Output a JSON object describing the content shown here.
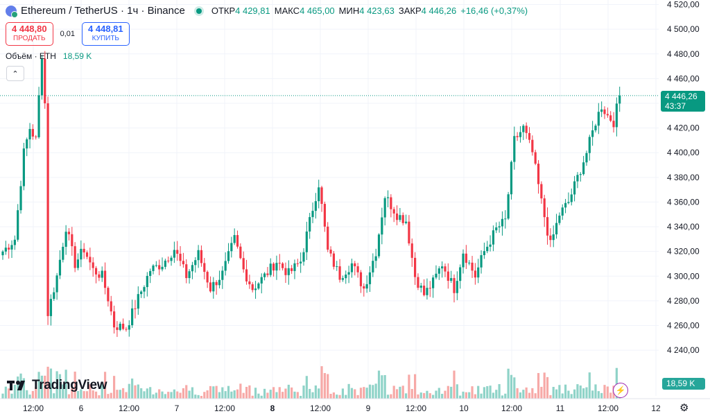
{
  "header": {
    "title": "Ethereum / TetherUS · 1ч · Binance",
    "open_label": "ОТКР",
    "open_value": "4 429,81",
    "high_label": "МАКС",
    "high_value": "4 465,00",
    "low_label": "МИН",
    "low_value": "4 423,63",
    "close_label": "ЗАКР",
    "close_value": "4 446,26",
    "change": "+16,46 (+0,37%)"
  },
  "trade": {
    "sell_price": "4 448,80",
    "sell_label": "ПРОДАТЬ",
    "spread": "0,01",
    "buy_price": "4 448,81",
    "buy_label": "КУПИТЬ"
  },
  "volume": {
    "label": "Объём · ETH",
    "value": "18,59 K",
    "tag": "18,59 K"
  },
  "price_tag": {
    "price": "4 446,26",
    "countdown": "43:37"
  },
  "logo": {
    "text": "TradingView"
  },
  "colors": {
    "up": "#089981",
    "down": "#f23645",
    "vol_up": "#8fd3c8",
    "vol_down": "#f7a9a7",
    "grid": "#f0f3fa"
  },
  "chart_data": {
    "type": "candlestick",
    "title": "Ethereum / TetherUS · 1ч · Binance",
    "interval": "1h",
    "y_ticks": [
      4240,
      4260,
      4280,
      4300,
      4320,
      4340,
      4360,
      4380,
      4400,
      4420,
      4440,
      4460,
      4480,
      4500,
      4520
    ],
    "y_tick_labels": [
      "4 240,00",
      "4 260,00",
      "4 280,00",
      "4 300,00",
      "4 320,00",
      "4 340,00",
      "4 360,00",
      "4 380,00",
      "4 400,00",
      "4 420,00",
      "4 440,00",
      "4 460,00",
      "4 480,00",
      "4 500,00",
      "4 520,00"
    ],
    "ylim": [
      4226,
      4522
    ],
    "x_labels": [
      "12:00",
      "6",
      "12:00",
      "7",
      "12:00",
      "8",
      "12:00",
      "9",
      "12:00",
      "10",
      "12:00",
      "11",
      "12:00",
      "12"
    ],
    "bold_x_labels": [
      "8"
    ],
    "last_price": 4446.26,
    "ohlc_anchors": [
      [
        0,
        4320
      ],
      [
        4,
        4330
      ],
      [
        7,
        4400
      ],
      [
        9,
        4420
      ],
      [
        11,
        4410
      ],
      [
        13,
        4480
      ],
      [
        14,
        4440
      ],
      [
        15,
        4270
      ],
      [
        18,
        4300
      ],
      [
        21,
        4340
      ],
      [
        24,
        4310
      ],
      [
        27,
        4322
      ],
      [
        30,
        4305
      ],
      [
        33,
        4300
      ],
      [
        35,
        4282
      ],
      [
        37,
        4260
      ],
      [
        41,
        4258
      ],
      [
        45,
        4282
      ],
      [
        49,
        4305
      ],
      [
        53,
        4310
      ],
      [
        57,
        4322
      ],
      [
        61,
        4300
      ],
      [
        65,
        4318
      ],
      [
        69,
        4290
      ],
      [
        73,
        4302
      ],
      [
        77,
        4330
      ],
      [
        80,
        4305
      ],
      [
        83,
        4290
      ],
      [
        87,
        4300
      ],
      [
        91,
        4312
      ],
      [
        95,
        4302
      ],
      [
        99,
        4312
      ],
      [
        103,
        4355
      ],
      [
        105,
        4375
      ],
      [
        108,
        4320
      ],
      [
        112,
        4300
      ],
      [
        116,
        4310
      ],
      [
        120,
        4290
      ],
      [
        124,
        4320
      ],
      [
        127,
        4365
      ],
      [
        131,
        4350
      ],
      [
        134,
        4345
      ],
      [
        137,
        4300
      ],
      [
        140,
        4285
      ],
      [
        143,
        4295
      ],
      [
        146,
        4310
      ],
      [
        150,
        4290
      ],
      [
        153,
        4320
      ],
      [
        157,
        4300
      ],
      [
        160,
        4320
      ],
      [
        164,
        4338
      ],
      [
        167,
        4345
      ],
      [
        170,
        4410
      ],
      [
        173,
        4420
      ],
      [
        176,
        4400
      ],
      [
        179,
        4360
      ],
      [
        182,
        4325
      ],
      [
        185,
        4350
      ],
      [
        188,
        4360
      ],
      [
        191,
        4380
      ],
      [
        194,
        4400
      ],
      [
        197,
        4425
      ],
      [
        199,
        4438
      ],
      [
        201,
        4430
      ],
      [
        203,
        4425
      ],
      [
        205,
        4446.26
      ]
    ],
    "volumes_k_approx": "0-52"
  },
  "menu_glyph": "⌃",
  "bolt_glyph": "⚡",
  "gear_glyph": "⚙"
}
